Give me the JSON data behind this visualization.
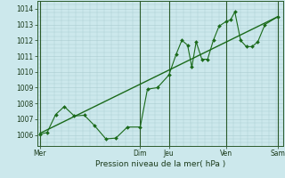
{
  "xlabel": "Pression niveau de la mer( hPa )",
  "bg_color": "#cce8ec",
  "grid_color": "#aaccd0",
  "line_color": "#1a6a1a",
  "vline_color": "#2a5a2a",
  "ylim": [
    1005.3,
    1014.5
  ],
  "yticks": [
    1006,
    1007,
    1008,
    1009,
    1010,
    1011,
    1012,
    1013,
    1014
  ],
  "day_labels": [
    "Mer",
    "Dim",
    "Jeu",
    "Ven",
    "Sam"
  ],
  "day_positions": [
    0.0,
    3.5,
    4.5,
    6.5,
    8.3
  ],
  "vline_positions": [
    0.0,
    3.5,
    4.5,
    6.5,
    8.3
  ],
  "data_line": [
    [
      0.0,
      1006.05
    ],
    [
      0.25,
      1006.15
    ],
    [
      0.55,
      1007.3
    ],
    [
      0.85,
      1007.8
    ],
    [
      1.2,
      1007.2
    ],
    [
      1.55,
      1007.25
    ],
    [
      1.9,
      1006.6
    ],
    [
      2.3,
      1005.75
    ],
    [
      2.65,
      1005.8
    ],
    [
      3.05,
      1006.5
    ],
    [
      3.5,
      1006.5
    ],
    [
      3.75,
      1008.9
    ],
    [
      4.1,
      1009.0
    ],
    [
      4.5,
      1009.8
    ],
    [
      4.75,
      1011.1
    ],
    [
      4.95,
      1012.0
    ],
    [
      5.15,
      1011.7
    ],
    [
      5.3,
      1010.3
    ],
    [
      5.45,
      1011.9
    ],
    [
      5.65,
      1010.8
    ],
    [
      5.85,
      1010.8
    ],
    [
      6.05,
      1012.0
    ],
    [
      6.25,
      1012.9
    ],
    [
      6.5,
      1013.2
    ],
    [
      6.65,
      1013.3
    ],
    [
      6.8,
      1013.8
    ],
    [
      7.0,
      1012.0
    ],
    [
      7.2,
      1011.6
    ],
    [
      7.4,
      1011.6
    ],
    [
      7.6,
      1011.9
    ],
    [
      7.85,
      1013.0
    ],
    [
      8.3,
      1013.5
    ]
  ],
  "trend_line": [
    [
      0.0,
      1006.1
    ],
    [
      8.3,
      1013.5
    ]
  ],
  "xlim": [
    -0.1,
    8.5
  ]
}
